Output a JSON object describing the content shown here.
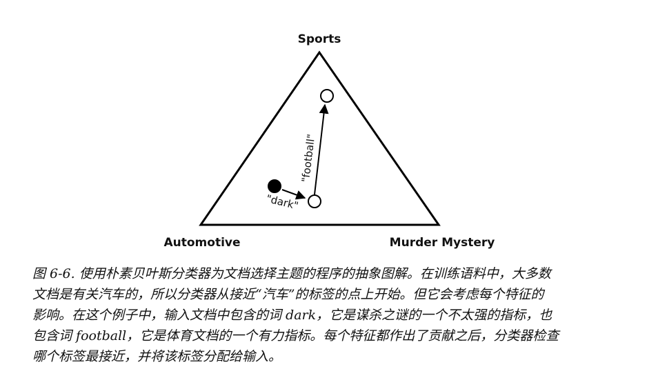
{
  "diagram": {
    "vertices": {
      "top": "Sports",
      "left": "Automotive",
      "right": "Murder Mystery"
    },
    "edges": {
      "dark": "\"dark\"",
      "football": "\"football\""
    }
  },
  "caption": {
    "line1": "图 6-6. 使用朴素贝叶斯分类器为文档选择主题的程序的抽象图解。在训练语料中，大多数",
    "line2": "文档是有关汽车的，所以分类器从接近“汽车”的标签的点上开始。但它会考虑每个特征的",
    "line3": "影响。在这个例子中，输入文档中包含的词 dark，它是谋杀之谜的一个不太强的指标，也",
    "line4": "包含词 football，它是体育文档的一个有力指标。每个特征都作出了贡献之后，分类器检查",
    "line5": "哪个标签最接近，并将该标签分配给输入。"
  }
}
